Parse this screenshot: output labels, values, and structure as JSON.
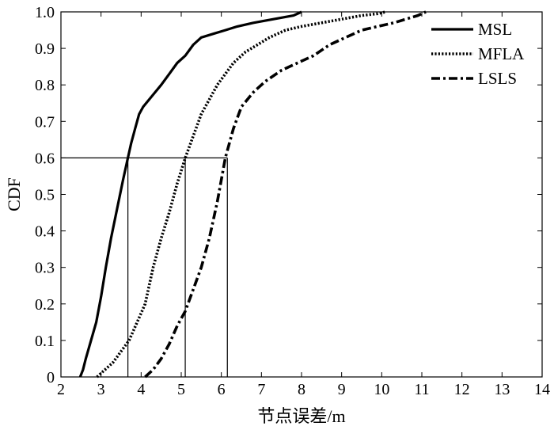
{
  "chart_data": {
    "type": "line",
    "xlabel": "节点误差/m",
    "ylabel": "CDF",
    "xlim": [
      2,
      14
    ],
    "ylim": [
      0,
      1
    ],
    "x_ticks": [
      "2",
      "3",
      "4",
      "5",
      "6",
      "7",
      "8",
      "9",
      "10",
      "11",
      "12",
      "13",
      "14"
    ],
    "y_ticks": [
      "0",
      "0.1",
      "0.2",
      "0.3",
      "0.4",
      "0.5",
      "0.6",
      "0.7",
      "0.8",
      "0.9",
      "1.0"
    ],
    "grid": false,
    "legend_position": "top-right",
    "series": [
      {
        "name": "MSL",
        "line_style": "solid",
        "x": [
          2.48,
          2.55,
          2.62,
          2.75,
          2.88,
          3.0,
          3.12,
          3.25,
          3.4,
          3.55,
          3.67,
          3.75,
          3.85,
          3.95,
          4.05,
          4.2,
          4.35,
          4.5,
          4.7,
          4.9,
          5.1,
          5.3,
          5.5,
          5.8,
          6.1,
          6.4,
          6.8,
          7.3,
          7.8,
          8.0
        ],
        "y": [
          0.0,
          0.02,
          0.05,
          0.1,
          0.15,
          0.22,
          0.3,
          0.38,
          0.46,
          0.54,
          0.6,
          0.64,
          0.68,
          0.72,
          0.74,
          0.76,
          0.78,
          0.8,
          0.83,
          0.86,
          0.88,
          0.91,
          0.93,
          0.94,
          0.95,
          0.96,
          0.97,
          0.98,
          0.99,
          1.0
        ]
      },
      {
        "name": "MFLA",
        "line_style": "dotted",
        "x": [
          2.9,
          3.1,
          3.3,
          3.5,
          3.7,
          3.9,
          4.1,
          4.3,
          4.5,
          4.7,
          4.9,
          5.1,
          5.3,
          5.5,
          5.7,
          5.9,
          6.1,
          6.3,
          6.6,
          6.9,
          7.2,
          7.6,
          8.0,
          8.5,
          9.0,
          9.5,
          9.9,
          10.1
        ],
        "y": [
          0.0,
          0.02,
          0.04,
          0.07,
          0.1,
          0.15,
          0.2,
          0.3,
          0.38,
          0.45,
          0.53,
          0.6,
          0.66,
          0.72,
          0.76,
          0.8,
          0.83,
          0.86,
          0.89,
          0.91,
          0.93,
          0.95,
          0.96,
          0.97,
          0.98,
          0.99,
          0.995,
          1.0
        ]
      },
      {
        "name": "LSLS",
        "line_style": "dash-dot",
        "x": [
          4.1,
          4.3,
          4.5,
          4.7,
          4.9,
          5.1,
          5.3,
          5.5,
          5.7,
          5.9,
          6.1,
          6.3,
          6.5,
          6.8,
          7.1,
          7.5,
          7.9,
          8.3,
          8.7,
          9.1,
          9.5,
          9.9,
          10.3,
          10.6,
          10.9,
          11.1
        ],
        "y": [
          0.0,
          0.02,
          0.05,
          0.09,
          0.14,
          0.18,
          0.24,
          0.3,
          0.38,
          0.48,
          0.6,
          0.68,
          0.74,
          0.78,
          0.81,
          0.84,
          0.86,
          0.88,
          0.91,
          0.93,
          0.95,
          0.96,
          0.97,
          0.98,
          0.99,
          1.0
        ]
      }
    ],
    "reference_lines": [
      {
        "y": 0.6,
        "x_values": [
          3.67,
          5.1,
          6.15
        ]
      }
    ]
  }
}
